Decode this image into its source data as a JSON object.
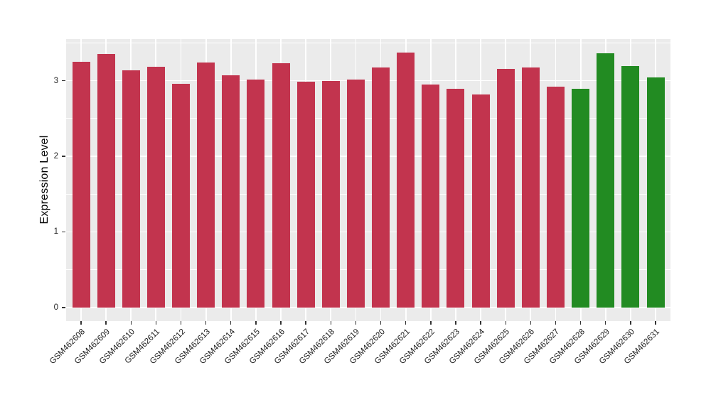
{
  "chart_data": {
    "type": "bar",
    "title": "",
    "xlabel": "",
    "ylabel": "Expression Level",
    "categories": [
      "GSM462608",
      "GSM462609",
      "GSM462610",
      "GSM462611",
      "GSM462612",
      "GSM462613",
      "GSM462614",
      "GSM462615",
      "GSM462616",
      "GSM462617",
      "GSM462618",
      "GSM462619",
      "GSM462620",
      "GSM462621",
      "GSM462622",
      "GSM462623",
      "GSM462624",
      "GSM462625",
      "GSM462626",
      "GSM462627",
      "GSM462628",
      "GSM462629",
      "GSM462630",
      "GSM462631"
    ],
    "values": [
      3.25,
      3.35,
      3.14,
      3.18,
      2.96,
      3.24,
      3.07,
      3.01,
      3.23,
      2.99,
      3.0,
      3.01,
      3.17,
      3.37,
      2.95,
      2.89,
      2.82,
      3.16,
      3.17,
      2.92,
      2.89,
      3.36,
      3.19,
      3.04
    ],
    "groups": [
      {
        "name": "group-red",
        "color": "#C2344E",
        "from": 0,
        "to": 19
      },
      {
        "name": "group-green",
        "color": "#228B22",
        "from": 20,
        "to": 23
      }
    ],
    "yticks": [
      0,
      1,
      2,
      3
    ],
    "yticks_minor": [
      0.5,
      1.5,
      2.5,
      3.5
    ],
    "ylim": [
      -0.18,
      3.55
    ],
    "grid": true,
    "legend": "none",
    "panel_bg": "#EBEBEB",
    "grid_color": "#FFFFFF",
    "x_label_angle": 45
  }
}
